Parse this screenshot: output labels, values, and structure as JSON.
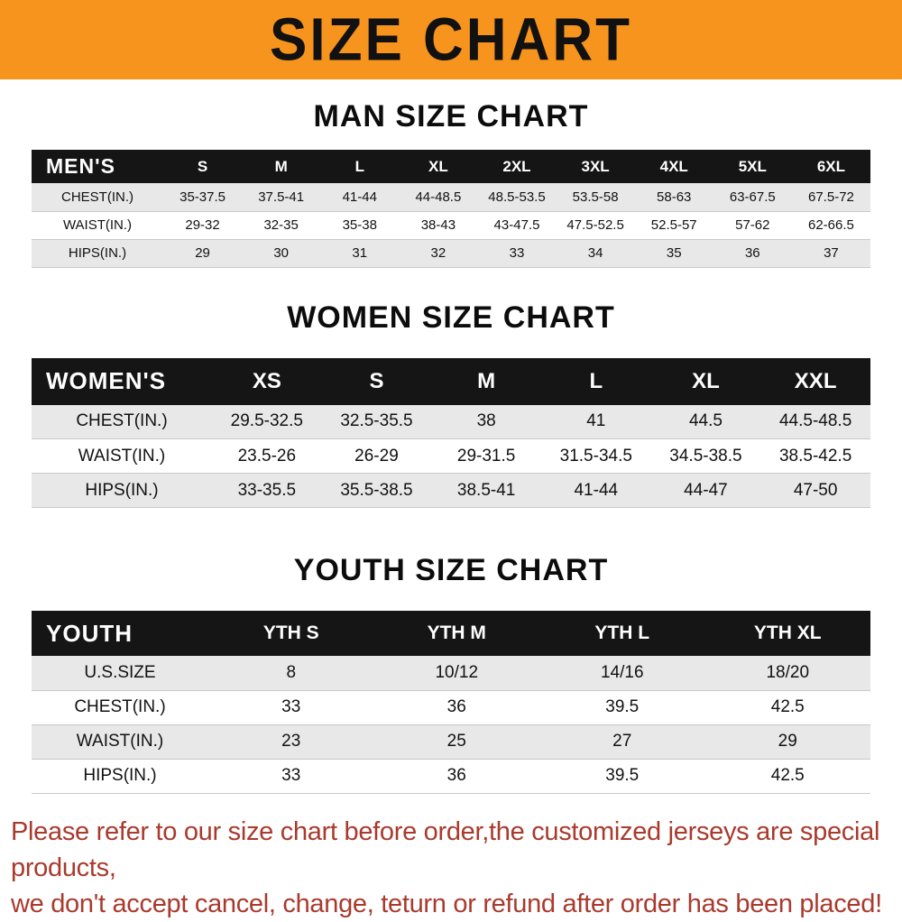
{
  "banner": {
    "title": "SIZE CHART"
  },
  "colors": {
    "banner_bg": "#f7941d",
    "banner_text": "#111111",
    "table_header_bg": "#151515",
    "table_header_text": "#ffffff",
    "row_alt_bg": "#e8e8e8",
    "row_line": "#c9c9c9",
    "footer_text": "#a93a2d"
  },
  "chart_data": [
    {
      "type": "table",
      "section_title": "MAN SIZE CHART",
      "header": [
        "MEN'S",
        "S",
        "M",
        "L",
        "XL",
        "2XL",
        "3XL",
        "4XL",
        "5XL",
        "6XL"
      ],
      "rows": [
        {
          "label": "CHEST(IN.)",
          "values": [
            "35-37.5",
            "37.5-41",
            "41-44",
            "44-48.5",
            "48.5-53.5",
            "53.5-58",
            "58-63",
            "63-67.5",
            "67.5-72"
          ]
        },
        {
          "label": "WAIST(IN.)",
          "values": [
            "29-32",
            "32-35",
            "35-38",
            "38-43",
            "43-47.5",
            "47.5-52.5",
            "52.5-57",
            "57-62",
            "62-66.5"
          ]
        },
        {
          "label": "HIPS(IN.)",
          "values": [
            "29",
            "30",
            "31",
            "32",
            "33",
            "34",
            "35",
            "36",
            "37"
          ]
        }
      ]
    },
    {
      "type": "table",
      "section_title": "WOMEN SIZE CHART",
      "header": [
        "WOMEN'S",
        "XS",
        "S",
        "M",
        "L",
        "XL",
        "XXL"
      ],
      "rows": [
        {
          "label": "CHEST(IN.)",
          "values": [
            "29.5-32.5",
            "32.5-35.5",
            "38",
            "41",
            "44.5",
            "44.5-48.5"
          ]
        },
        {
          "label": "WAIST(IN.)",
          "values": [
            "23.5-26",
            "26-29",
            "29-31.5",
            "31.5-34.5",
            "34.5-38.5",
            "38.5-42.5"
          ]
        },
        {
          "label": "HIPS(IN.)",
          "values": [
            "33-35.5",
            "35.5-38.5",
            "38.5-41",
            "41-44",
            "44-47",
            "47-50"
          ]
        }
      ]
    },
    {
      "type": "table",
      "section_title": "YOUTH SIZE CHART",
      "header": [
        "YOUTH",
        "YTH S",
        "YTH M",
        "YTH L",
        "YTH XL"
      ],
      "rows": [
        {
          "label": "U.S.SIZE",
          "values": [
            "8",
            "10/12",
            "14/16",
            "18/20"
          ]
        },
        {
          "label": "CHEST(IN.)",
          "values": [
            "33",
            "36",
            "39.5",
            "42.5"
          ]
        },
        {
          "label": "WAIST(IN.)",
          "values": [
            "23",
            "25",
            "27",
            "29"
          ]
        },
        {
          "label": "HIPS(IN.)",
          "values": [
            "33",
            "36",
            "39.5",
            "42.5"
          ]
        }
      ]
    }
  ],
  "footer": {
    "line1": "Please refer to our size chart before order,the customized jerseys are special products,",
    "line2": "we don't accept cancel, change, teturn or refund after order has been placed!"
  }
}
